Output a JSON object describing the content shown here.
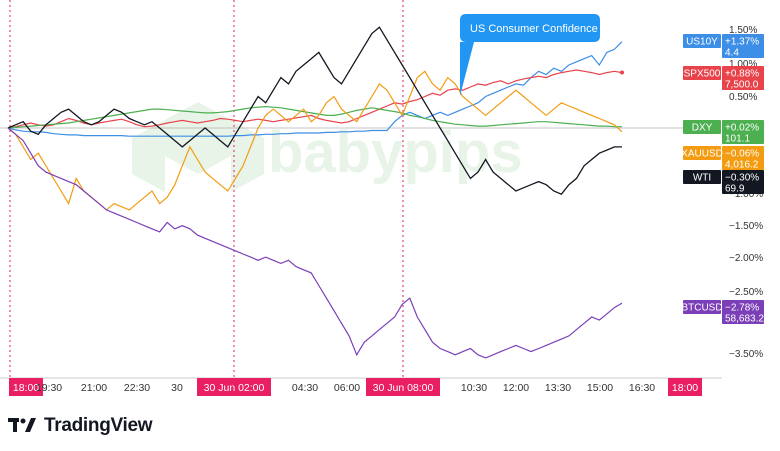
{
  "chart_data": {
    "type": "line",
    "x_ticks": [
      "18:00",
      "19:30",
      "21:00",
      "22:30",
      "30",
      "30 Jun  02:00",
      "04:30",
      "06:00",
      "30 Jun  08:00",
      "10:30",
      "12:00",
      "13:30",
      "15:00",
      "16:30",
      "18:00"
    ],
    "highlighted_ticks": [
      "18:00",
      "30 Jun  02:00",
      "30 Jun  08:00"
    ],
    "y_ticks": [
      "1.50%",
      "1.00%",
      "0.50%",
      "−1.00%",
      "−1.50%",
      "−2.00%",
      "−2.50%",
      "−3.50%"
    ],
    "ylim": [
      -4.0,
      1.8
    ],
    "annotation": "US Consumer Confidence",
    "series": [
      {
        "name": "US10Y",
        "color": "#3d8ee6",
        "change": "+1.37%",
        "value": "4.4",
        "values": [
          0,
          -0.03,
          -0.05,
          -0.06,
          -0.06,
          -0.07,
          -0.09,
          -0.1,
          -0.11,
          -0.11,
          -0.12,
          -0.12,
          -0.12,
          -0.12,
          -0.12,
          -0.12,
          -0.13,
          -0.13,
          -0.13,
          -0.13,
          -0.13,
          -0.13,
          -0.13,
          -0.13,
          -0.13,
          -0.13,
          -0.13,
          -0.13,
          -0.13,
          -0.13,
          -0.12,
          -0.12,
          -0.11,
          -0.11,
          -0.1,
          -0.1,
          -0.09,
          -0.09,
          -0.08,
          -0.08,
          -0.08,
          -0.08,
          -0.07,
          -0.07,
          -0.06,
          -0.06,
          -0.05,
          -0.05,
          -0.04,
          -0.04,
          -0.04,
          0.1,
          0.2,
          0.25,
          0.2,
          0.15,
          0.2,
          0.25,
          0.2,
          0.25,
          0.3,
          0.35,
          0.4,
          0.5,
          0.55,
          0.6,
          0.65,
          0.7,
          0.68,
          0.8,
          0.9,
          0.85,
          0.95,
          0.9,
          1.0,
          1.05,
          1.1,
          1.15,
          1.0,
          1.2,
          1.25,
          1.37
        ]
      },
      {
        "name": "SPX500",
        "color": "#e8434b",
        "change": "+0.88%",
        "value": "7,500.0",
        "values": [
          0,
          0.02,
          0.05,
          0.08,
          0.05,
          0.03,
          0.05,
          0.1,
          0.15,
          0.12,
          0.08,
          0.05,
          0.08,
          0.1,
          0.12,
          0.14,
          0.1,
          0.05,
          0.02,
          0.03,
          0.05,
          0.08,
          0.1,
          0.12,
          0.1,
          0.08,
          0.1,
          0.12,
          0.15,
          0.14,
          0.12,
          0.1,
          0.12,
          0.14,
          0.12,
          0.1,
          0.12,
          0.14,
          0.16,
          0.18,
          0.2,
          0.15,
          0.12,
          0.1,
          0.08,
          0.1,
          0.15,
          0.2,
          0.25,
          0.3,
          0.35,
          0.4,
          0.38,
          0.42,
          0.45,
          0.5,
          0.55,
          0.52,
          0.6,
          0.62,
          0.6,
          0.65,
          0.7,
          0.68,
          0.72,
          0.75,
          0.7,
          0.75,
          0.78,
          0.8,
          0.82,
          0.8,
          0.85,
          0.88,
          0.9,
          0.92,
          0.9,
          0.88,
          0.85,
          0.88,
          0.9,
          0.88
        ]
      },
      {
        "name": "DXY",
        "color": "#4caf50",
        "change": "+0.02%",
        "value": "101.1",
        "values": [
          0,
          0.01,
          0.02,
          0.03,
          0.04,
          0.05,
          0.06,
          0.07,
          0.08,
          0.1,
          0.12,
          0.14,
          0.16,
          0.18,
          0.2,
          0.22,
          0.24,
          0.26,
          0.28,
          0.3,
          0.3,
          0.29,
          0.28,
          0.27,
          0.26,
          0.25,
          0.24,
          0.24,
          0.25,
          0.26,
          0.28,
          0.3,
          0.32,
          0.33,
          0.34,
          0.33,
          0.32,
          0.3,
          0.28,
          0.26,
          0.24,
          0.22,
          0.2,
          0.2,
          0.22,
          0.25,
          0.28,
          0.3,
          0.32,
          0.3,
          0.28,
          0.26,
          0.24,
          0.2,
          0.18,
          0.15,
          0.12,
          0.1,
          0.08,
          0.06,
          0.05,
          0.04,
          0.03,
          0.03,
          0.04,
          0.05,
          0.06,
          0.07,
          0.08,
          0.09,
          0.1,
          0.1,
          0.09,
          0.08,
          0.07,
          0.06,
          0.05,
          0.04,
          0.03,
          0.03,
          0.02,
          0.02
        ]
      },
      {
        "name": "XAUUSD",
        "color": "#f39c12",
        "change": "−0.06%",
        "value": "4,016.2",
        "values": [
          0,
          -0.1,
          -0.3,
          -0.5,
          -0.4,
          -0.6,
          -0.8,
          -1.0,
          -1.2,
          -0.8,
          -1.0,
          -1.1,
          -1.2,
          -1.3,
          -1.2,
          -1.25,
          -1.3,
          -1.2,
          -1.1,
          -1.0,
          -1.2,
          -1.1,
          -0.9,
          -0.6,
          -0.3,
          -0.5,
          -0.7,
          -0.8,
          -0.9,
          -1.0,
          -0.8,
          -0.6,
          -0.3,
          0.0,
          0.2,
          0.3,
          0.2,
          0.1,
          0.2,
          0.3,
          0.1,
          0.2,
          0.4,
          0.5,
          0.3,
          0.2,
          0.1,
          0.3,
          0.5,
          0.7,
          0.6,
          0.4,
          0.2,
          0.5,
          0.8,
          0.9,
          0.7,
          0.6,
          0.8,
          0.7,
          0.5,
          0.4,
          0.3,
          0.2,
          0.3,
          0.4,
          0.5,
          0.6,
          0.5,
          0.4,
          0.3,
          0.2,
          0.3,
          0.4,
          0.35,
          0.3,
          0.25,
          0.2,
          0.15,
          0.1,
          0.05,
          -0.06
        ]
      },
      {
        "name": "WTI",
        "color": "#131722",
        "change": "−0.30%",
        "value": "69.9",
        "values": [
          0,
          0.05,
          0.1,
          -0.05,
          -0.1,
          0.05,
          0.15,
          0.25,
          0.3,
          0.2,
          0.1,
          0.05,
          0.1,
          0.2,
          0.3,
          0.25,
          0.15,
          0.1,
          0.05,
          0.1,
          0.0,
          -0.1,
          -0.2,
          -0.3,
          -0.2,
          -0.1,
          0.0,
          -0.1,
          -0.2,
          -0.3,
          -0.1,
          0.1,
          0.3,
          0.5,
          0.4,
          0.6,
          0.8,
          0.7,
          0.9,
          1.0,
          1.1,
          1.2,
          1.0,
          0.8,
          0.7,
          0.9,
          1.1,
          1.3,
          1.5,
          1.6,
          1.4,
          1.2,
          1.0,
          0.8,
          0.6,
          0.4,
          0.2,
          0.0,
          -0.2,
          -0.4,
          -0.6,
          -0.8,
          -0.7,
          -0.5,
          -0.7,
          -0.8,
          -0.9,
          -1.0,
          -0.95,
          -0.9,
          -0.85,
          -0.9,
          -1.0,
          -1.05,
          -0.9,
          -0.8,
          -0.6,
          -0.5,
          -0.4,
          -0.35,
          -0.3,
          -0.3
        ]
      },
      {
        "name": "BTCUSD",
        "color": "#7b3fb8",
        "change": "−2.78%",
        "value": "58,683.2",
        "values": [
          0,
          -0.1,
          -0.2,
          -0.4,
          -0.6,
          -0.7,
          -0.75,
          -0.8,
          -0.85,
          -0.9,
          -1.0,
          -1.1,
          -1.2,
          -1.3,
          -1.35,
          -1.4,
          -1.45,
          -1.5,
          -1.55,
          -1.6,
          -1.65,
          -1.5,
          -1.6,
          -1.55,
          -1.6,
          -1.7,
          -1.75,
          -1.8,
          -1.85,
          -1.9,
          -1.95,
          -2.0,
          -2.05,
          -2.1,
          -2.05,
          -2.1,
          -2.15,
          -2.1,
          -2.2,
          -2.25,
          -2.3,
          -2.5,
          -2.7,
          -2.9,
          -3.1,
          -3.3,
          -3.6,
          -3.4,
          -3.3,
          -3.2,
          -3.1,
          -3.0,
          -2.8,
          -2.7,
          -3.0,
          -3.2,
          -3.4,
          -3.5,
          -3.55,
          -3.6,
          -3.55,
          -3.5,
          -3.6,
          -3.65,
          -3.6,
          -3.55,
          -3.5,
          -3.45,
          -3.5,
          -3.55,
          -3.5,
          -3.45,
          -3.4,
          -3.35,
          -3.3,
          -3.2,
          -3.1,
          -3.0,
          -3.05,
          -2.95,
          -2.85,
          -2.78
        ]
      }
    ]
  },
  "footer": {
    "brand": "TradingView"
  }
}
